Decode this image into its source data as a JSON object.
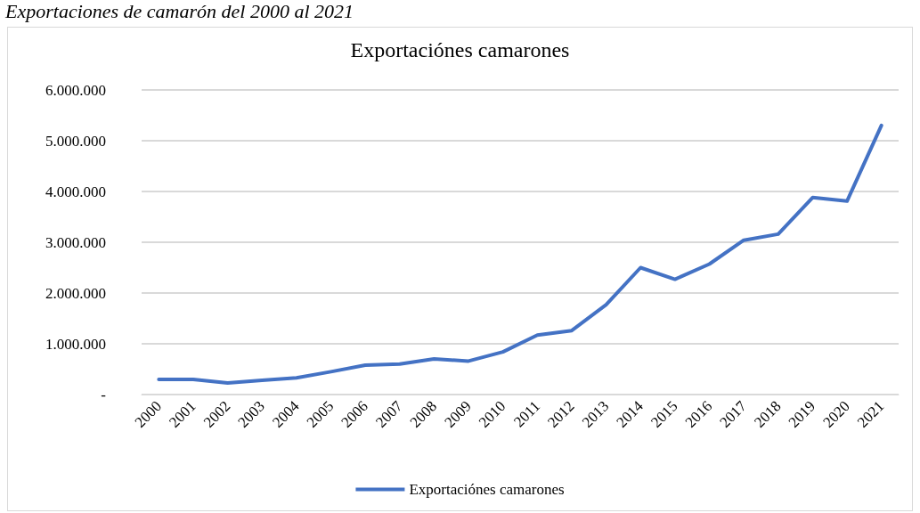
{
  "chart_data": {
    "type": "line",
    "title": "Exportaciónes camarones",
    "annotations": [
      "Exportaciones de camarón del 2000 al 2021"
    ],
    "categories": [
      "2000",
      "2001",
      "2002",
      "2003",
      "2004",
      "2005",
      "2006",
      "2007",
      "2008",
      "2009",
      "2010",
      "2011",
      "2012",
      "2013",
      "2014",
      "2015",
      "2016",
      "2017",
      "2018",
      "2019",
      "2020",
      "2021"
    ],
    "series": [
      {
        "name": "Exportaciónes camarones",
        "color": "#4472c4",
        "values": [
          300000,
          300000,
          230000,
          280000,
          330000,
          450000,
          580000,
          600000,
          700000,
          660000,
          840000,
          1170000,
          1260000,
          1770000,
          2500000,
          2270000,
          2570000,
          3040000,
          3160000,
          3880000,
          3810000,
          5300000
        ]
      }
    ],
    "ylim": [
      0,
      6000000
    ],
    "yticks": [
      {
        "value": 0,
        "label": "-"
      },
      {
        "value": 1000000,
        "label": "1.000.000"
      },
      {
        "value": 2000000,
        "label": "2.000.000"
      },
      {
        "value": 3000000,
        "label": "3.000.000"
      },
      {
        "value": 4000000,
        "label": "4.000.000"
      },
      {
        "value": 5000000,
        "label": "5.000.000"
      },
      {
        "value": 6000000,
        "label": "6.000.000"
      }
    ],
    "grid": "y",
    "legend": "bottom",
    "marker": "none",
    "line_style": "solid"
  }
}
